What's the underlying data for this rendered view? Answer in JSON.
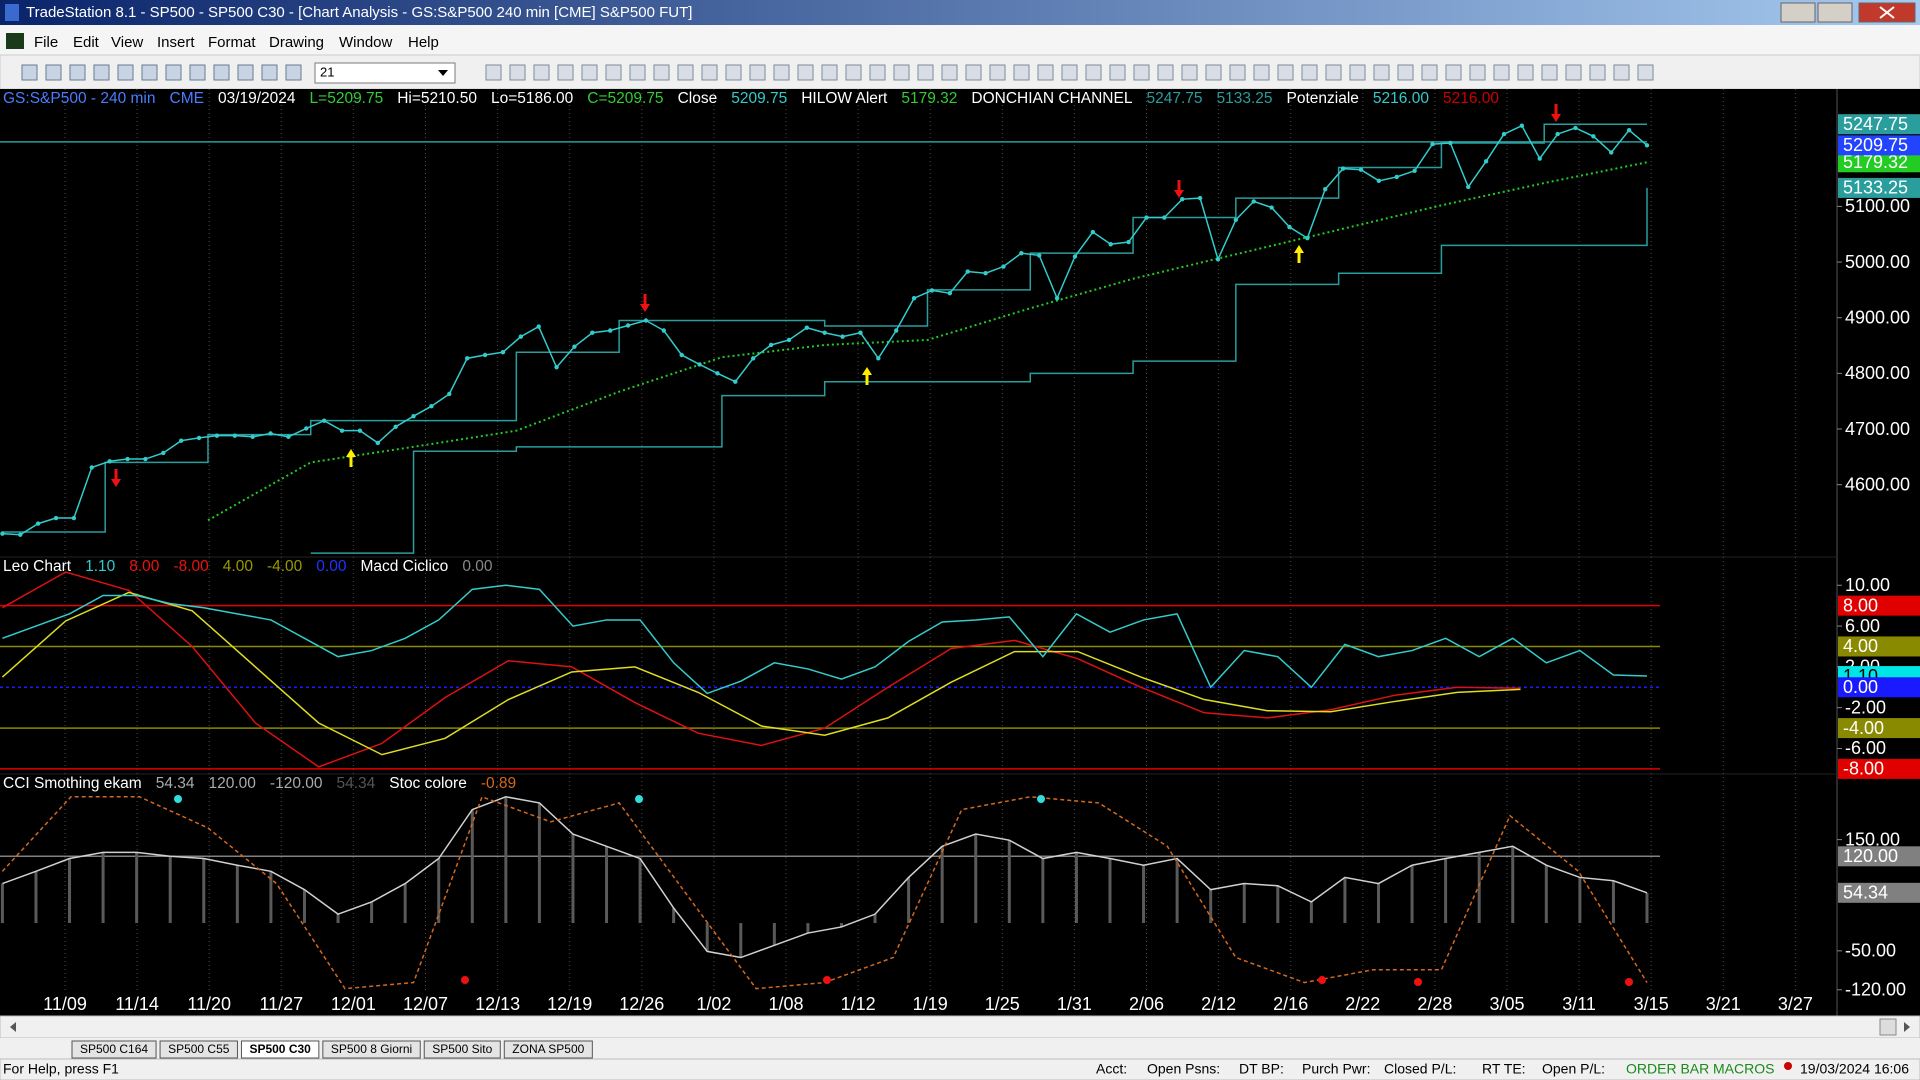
{
  "window": {
    "title": "TradeStation 8.1 - SP500 - SP500 C30 - [Chart Analysis - GS:S&P500  240 min  [CME] S&P500 FUT]",
    "menu": [
      "File",
      "Edit",
      "View",
      "Insert",
      "Format",
      "Drawing",
      "Window",
      "Help"
    ],
    "toolbar_combo": "21"
  },
  "chart_data": [
    {
      "type": "line",
      "header": [
        {
          "text": "GS:S&P500 - 240 min",
          "color": "#4a7dff"
        },
        {
          "text": "CME",
          "color": "#4a7dff"
        },
        {
          "text": "03/19/2024",
          "color": "#ffffff"
        },
        {
          "text": "L=5209.75",
          "color": "#33cc33"
        },
        {
          "text": "Hi=5210.50",
          "color": "#ffffff"
        },
        {
          "text": "Lo=5186.00",
          "color": "#ffffff"
        },
        {
          "text": "C=5209.75",
          "color": "#33cc33"
        },
        {
          "text": "Close",
          "color": "#ffffff"
        },
        {
          "text": "5209.75",
          "color": "#33cccc"
        },
        {
          "text": "HILOW Alert",
          "color": "#ffffff"
        },
        {
          "text": "5179.32",
          "color": "#33cc33"
        },
        {
          "text": "DONCHIAN CHANNEL",
          "color": "#ffffff"
        },
        {
          "text": "5247.75",
          "color": "#2a9d9d"
        },
        {
          "text": "5133.25",
          "color": "#2a9d9d"
        },
        {
          "text": "Potenziale",
          "color": "#ffffff"
        },
        {
          "text": "5216.00",
          "color": "#33cccc"
        },
        {
          "text": "5216.00",
          "color": "#cc0000"
        }
      ],
      "ylim": [
        4470,
        5311
      ],
      "yticks": [
        {
          "value": 5100,
          "label": "5100.00"
        },
        {
          "value": 5000,
          "label": "5000.00"
        },
        {
          "value": 4900,
          "label": "4900.00"
        },
        {
          "value": 4800,
          "label": "4800.00"
        },
        {
          "value": 4700,
          "label": "4700.00"
        },
        {
          "value": 4600,
          "label": "4600.00"
        }
      ],
      "levels": [
        {
          "value": 5216,
          "color": "#2a9d9d"
        }
      ],
      "series": [
        {
          "color": "#2a9d9d",
          "style": "step",
          "last_label": "5247.75",
          "box_color": "#2a9d9d",
          "values": [
            4515,
            4640,
            4690,
            4715,
            4715,
            4838,
            4895,
            4895,
            4885,
            4950,
            5016,
            5080,
            5115,
            5170,
            5214,
            5247.75,
            5247.75
          ]
        },
        {
          "color": "#2a9d9d",
          "style": "step",
          "last_label": "5133.25",
          "box_color": "#2a9d9d",
          "values": [
            null,
            null,
            null,
            4477,
            4660,
            4668,
            4668,
            4760,
            4785,
            4785,
            4800,
            4822,
            4960,
            4980,
            5030,
            5030,
            5133.25
          ]
        },
        {
          "color": "#22cc22",
          "style": "dotted",
          "last_label": "5179.32",
          "box_color": "#22cc22",
          "values": [
            null,
            null,
            4536,
            4640,
            4668,
            4697,
            4767,
            4829,
            4851,
            4860,
            4917,
            4970,
            5014,
            5058,
            5102,
            5142,
            5179.32
          ]
        },
        {
          "color": "#33cccc",
          "style": "dots",
          "last_label": "5209.75",
          "box_color": "#2244ff",
          "values": [
            4512,
            4510,
            4530,
            4540,
            4540,
            4631,
            4642,
            4646,
            4646,
            4657,
            4679,
            4684,
            4688,
            4688,
            4686,
            4692,
            4686,
            4701,
            4715,
            4697,
            4697,
            4675,
            4704,
            4723,
            4741,
            4763,
            4827,
            4833,
            4838,
            4866,
            4884,
            4811,
            4848,
            4873,
            4877,
            4886,
            4895,
            4877,
            4833,
            4816,
            4800,
            4785,
            4827,
            4851,
            4860,
            4882,
            4873,
            4866,
            4873,
            4827,
            4877,
            4935,
            4949,
            4944,
            4983,
            4980,
            4992,
            5016,
            5012,
            4935,
            5010,
            5054,
            5032,
            5036,
            5080,
            5080,
            5113,
            5115,
            5005,
            5076,
            5109,
            5098,
            5063,
            5043,
            5131,
            5168,
            5166,
            5146,
            5153,
            5164,
            5212,
            5214,
            5135,
            5181,
            5230,
            5245,
            5186,
            5230,
            5241,
            5226,
            5197,
            5237,
            5209.75
          ]
        }
      ]
    },
    {
      "type": "line",
      "header": [
        {
          "text": "Leo Chart",
          "color": "#ffffff"
        },
        {
          "text": "1.10",
          "color": "#33cccc"
        },
        {
          "text": "8.00",
          "color": "#ee1111"
        },
        {
          "text": "-8.00",
          "color": "#ee1111"
        },
        {
          "text": "4.00",
          "color": "#999900"
        },
        {
          "text": "-4.00",
          "color": "#999900"
        },
        {
          "text": "0.00",
          "color": "#2233ff"
        },
        {
          "text": "Macd Ciclico",
          "color": "#ffffff"
        },
        {
          "text": "0.00",
          "color": "#888888"
        }
      ],
      "ylim": [
        -8.5,
        12.77
      ],
      "yticks": [
        {
          "value": 10,
          "label": "10.00"
        },
        {
          "value": 6,
          "label": "6.00"
        },
        {
          "value": 2,
          "label": "2.00"
        },
        {
          "value": -2,
          "label": "-2.00"
        },
        {
          "value": -6,
          "label": "-6.00"
        }
      ],
      "levels": [
        {
          "value": 8,
          "label": "8.00",
          "color": "#e00000"
        },
        {
          "value": 4,
          "label": "4.00",
          "color": "#8a8a00"
        },
        {
          "value": 0,
          "label": "0.00",
          "color": "#1a1aff",
          "dash": true
        },
        {
          "value": -4,
          "label": "-4.00",
          "color": "#8a8a00"
        },
        {
          "value": -8,
          "label": "-8.00",
          "color": "#e00000"
        }
      ],
      "series": [
        {
          "color": "#dd1111",
          "style": "line",
          "values": [
            7.8,
            11.3,
            9.5,
            4.0,
            -3.5,
            -7.8,
            -5.5,
            -1.0,
            2.6,
            2.0,
            -1.5,
            -4.5,
            -5.7,
            -4.0,
            0.0,
            3.8,
            4.6,
            2.8,
            0.0,
            -2.5,
            -3.0,
            -2.2,
            -0.8,
            0.0,
            -0.1,
            null,
            null
          ]
        },
        {
          "color": "#dddd22",
          "style": "line",
          "values": [
            1.0,
            6.5,
            9.3,
            7.5,
            2.0,
            -3.5,
            -6.6,
            -5.0,
            -1.2,
            1.5,
            2.0,
            -0.5,
            -3.8,
            -4.7,
            -3.0,
            0.5,
            3.5,
            3.5,
            1.0,
            -1.2,
            -2.3,
            -2.4,
            -1.4,
            -0.5,
            -0.2,
            null,
            null
          ]
        },
        {
          "color": "#33cccc",
          "style": "line",
          "last_label": "1.10",
          "box_color": "#00e5e5",
          "values": [
            4.8,
            6.0,
            7.2,
            9.0,
            9.0,
            8.2,
            7.8,
            7.2,
            6.6,
            4.8,
            3.0,
            3.6,
            4.8,
            6.6,
            9.6,
            10.0,
            9.6,
            6.0,
            6.6,
            6.6,
            2.4,
            -0.6,
            0.6,
            2.4,
            1.8,
            0.8,
            2.0,
            4.5,
            6.4,
            6.6,
            6.9,
            3.0,
            7.2,
            5.4,
            6.6,
            7.2,
            0,
            3.6,
            3.0,
            0,
            4.2,
            3.0,
            3.6,
            4.8,
            3.0,
            4.8,
            2.4,
            3.6,
            1.2,
            1.1
          ]
        }
      ]
    },
    {
      "type": "line",
      "header": [
        {
          "text": "CCI Smothing ekam",
          "color": "#ffffff"
        },
        {
          "text": "54.34",
          "color": "#aaaaaa"
        },
        {
          "text": "120.00",
          "color": "#aaaaaa"
        },
        {
          "text": "-120.00",
          "color": "#aaaaaa"
        },
        {
          "text": "54.34",
          "color": "#555555"
        },
        {
          "text": "Stoc colore",
          "color": "#ffffff"
        },
        {
          "text": "-0.89",
          "color": "#d2691e"
        }
      ],
      "ylim": [
        -124,
        268
      ],
      "yticks": [
        {
          "value": 150,
          "label": "150.00"
        },
        {
          "value": -50,
          "label": "-50.00"
        },
        {
          "value": -120,
          "label": "-120.00"
        }
      ],
      "levels": [
        {
          "value": 120,
          "label": "120.00",
          "color": "#808080"
        }
      ],
      "series": [
        {
          "color": "#d0d0d0",
          "style": "line",
          "histogram": true,
          "last_label": "54.34",
          "box_color": "#808080",
          "values": [
            71,
            93,
            116,
            127,
            127,
            120,
            116,
            104,
            93,
            60,
            16,
            38,
            71,
            116,
            204,
            227,
            216,
            160,
            138,
            116,
            27,
            -51,
            -62,
            -40,
            -18,
            -7,
            16,
            82,
            138,
            160,
            149,
            116,
            127,
            116,
            104,
            116,
            60,
            71,
            67,
            38,
            82,
            71,
            104,
            116,
            127,
            138,
            104,
            82,
            76,
            54.34
          ]
        },
        {
          "color": "#d2691e",
          "style": "dashed",
          "values": [
            93,
            227,
            227,
            171,
            71,
            -118,
            -107,
            227,
            182,
            216,
            49,
            -118,
            -107,
            -62,
            204,
            227,
            216,
            138,
            -62,
            -107,
            -84,
            -84,
            193,
            93,
            -107
          ]
        }
      ]
    }
  ],
  "date_axis": [
    "11/09",
    "11/14",
    "11/20",
    "11/27",
    "12/01",
    "12/07",
    "12/13",
    "12/19",
    "12/26",
    "1/02",
    "1/08",
    "1/12",
    "1/19",
    "1/25",
    "1/31",
    "2/06",
    "2/12",
    "2/16",
    "2/22",
    "2/28",
    "3/05",
    "3/11",
    "3/15",
    "3/21",
    "3/27"
  ],
  "tabs": {
    "items": [
      "SP500 C164",
      "SP500 C55",
      "SP500 C30",
      "SP500 8 Giorni",
      "SP500 Sito",
      "ZONA SP500"
    ],
    "active": 2
  },
  "status": {
    "help": "For Help, press F1",
    "fields": [
      "Acct:",
      "Open Psns:",
      "DT BP:",
      "Purch Pwr:",
      "Closed P/L:",
      "RT TE:",
      "Open P/L:"
    ],
    "order_bar": "ORDER BAR",
    "macros": "MACROS",
    "datetime": "19/03/2024 16:06"
  }
}
